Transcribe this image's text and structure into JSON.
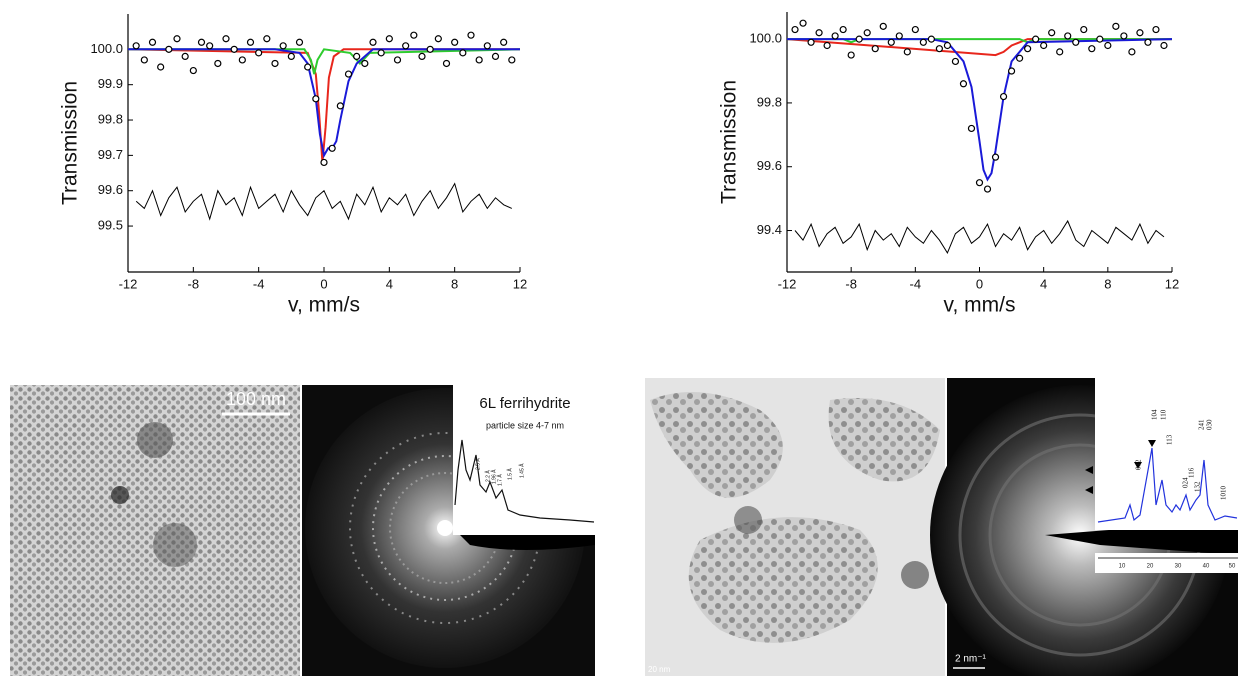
{
  "chart_data": [
    {
      "type": "scatter",
      "ylabel": "Transmission",
      "xlabel": "v, mm/s",
      "xlim": [
        -12,
        12
      ],
      "xticks": [
        -12,
        -8,
        -4,
        0,
        4,
        8,
        12
      ],
      "ylim": [
        99.37,
        100.1
      ],
      "yticks": [
        99.5,
        99.6,
        99.7,
        99.8,
        99.9,
        {
          "value": 100,
          "label": "100.0"
        }
      ],
      "series": [
        {
          "kind": "points",
          "color": "#000000",
          "x": [
            -11.5,
            -11,
            -10.5,
            -10,
            -9.5,
            -9,
            -8.5,
            -8,
            -7.5,
            -7,
            -6.5,
            -6,
            -5.5,
            -5,
            -4.5,
            -4,
            -3.5,
            -3,
            -2.5,
            -2,
            -1.5,
            -1,
            -0.5,
            0,
            0.5,
            1,
            1.5,
            2,
            2.5,
            3,
            3.5,
            4,
            4.5,
            5,
            5.5,
            6,
            6.5,
            7,
            7.5,
            8,
            8.5,
            9,
            9.5,
            10,
            10.5,
            11,
            11.5
          ],
          "values": [
            100.01,
            99.97,
            100.02,
            99.95,
            100.0,
            100.03,
            99.98,
            99.94,
            100.02,
            100.01,
            99.96,
            100.03,
            100.0,
            99.97,
            100.02,
            99.99,
            100.03,
            99.96,
            100.01,
            99.98,
            100.02,
            99.95,
            99.86,
            99.68,
            99.72,
            99.84,
            99.93,
            99.98,
            99.96,
            100.02,
            99.99,
            100.03,
            99.97,
            100.01,
            100.04,
            99.98,
            100.0,
            100.03,
            99.96,
            100.02,
            99.99,
            100.04,
            99.97,
            100.01,
            99.98,
            100.02,
            99.97
          ]
        },
        {
          "kind": "line",
          "color": "#000000",
          "x": [
            -11.5,
            -11,
            -10.5,
            -10,
            -9.5,
            -9,
            -8.5,
            -8,
            -7.5,
            -7,
            -6.5,
            -6,
            -5.5,
            -5,
            -4.5,
            -4,
            -3.5,
            -3,
            -2.5,
            -2,
            -1.5,
            -1,
            -0.5,
            0,
            0.5,
            1,
            1.5,
            2,
            2.5,
            3,
            3.5,
            4,
            4.5,
            5,
            5.5,
            6,
            6.5,
            7,
            7.5,
            8,
            8.5,
            9,
            9.5,
            10,
            10.5,
            11,
            11.5
          ],
          "values": [
            99.57,
            99.55,
            99.6,
            99.53,
            99.58,
            99.61,
            99.54,
            99.57,
            99.59,
            99.52,
            99.6,
            99.56,
            99.58,
            99.53,
            99.61,
            99.55,
            99.57,
            99.59,
            99.54,
            99.6,
            99.56,
            99.53,
            99.58,
            99.6,
            99.55,
            99.57,
            99.52,
            99.59,
            99.56,
            99.61,
            99.54,
            99.58,
            99.56,
            99.59,
            99.53,
            99.57,
            99.6,
            99.55,
            99.58,
            99.62,
            99.54,
            99.57,
            99.59,
            99.55,
            99.58,
            99.56,
            99.55
          ]
        },
        {
          "kind": "line",
          "color": "#e8261c",
          "x": [
            -12,
            -1,
            -0.5,
            -0.3,
            -0.1,
            0.1,
            0.3,
            0.6,
            1.2,
            12
          ],
          "values": [
            100,
            99.99,
            99.93,
            99.82,
            99.68,
            99.78,
            99.92,
            99.98,
            100,
            100
          ]
        },
        {
          "kind": "line",
          "color": "#2ecc2e",
          "x": [
            -12,
            -1.2,
            -0.8,
            -0.6,
            -0.4,
            0,
            1.6,
            2,
            2.2,
            2.4,
            2.8,
            12
          ],
          "values": [
            100,
            100,
            99.97,
            99.93,
            99.97,
            100,
            99.99,
            99.97,
            99.96,
            99.97,
            99.99,
            100
          ]
        },
        {
          "kind": "line",
          "color": "#1a1ad8",
          "x": [
            -12,
            -3,
            -1.5,
            -1,
            -0.5,
            -0.25,
            0,
            0.25,
            0.5,
            0.75,
            1,
            1.5,
            2,
            2.5,
            3,
            12
          ],
          "values": [
            100,
            100,
            99.99,
            99.96,
            99.86,
            99.76,
            99.7,
            99.72,
            99.72,
            99.74,
            99.8,
            99.91,
            99.96,
            99.98,
            100,
            100
          ]
        }
      ]
    },
    {
      "type": "scatter",
      "ylabel": "Transmission",
      "xlabel": "v, mm/s",
      "xlim": [
        -12,
        12
      ],
      "xticks": [
        -12,
        -8,
        -4,
        0,
        4,
        8,
        12
      ],
      "ylim": [
        99.27,
        100.085
      ],
      "yticks": [
        99.4,
        99.6,
        99.8,
        {
          "value": 100,
          "label": "100.0"
        }
      ],
      "series": [
        {
          "kind": "points",
          "color": "#000000",
          "x": [
            -11.5,
            -11,
            -10.5,
            -10,
            -9.5,
            -9,
            -8.5,
            -8,
            -7.5,
            -7,
            -6.5,
            -6,
            -5.5,
            -5,
            -4.5,
            -4,
            -3.5,
            -3,
            -2.5,
            -2,
            -1.5,
            -1,
            -0.5,
            0,
            0.5,
            1,
            1.5,
            2,
            2.5,
            3,
            3.5,
            4,
            4.5,
            5,
            5.5,
            6,
            6.5,
            7,
            7.5,
            8,
            8.5,
            9,
            9.5,
            10,
            10.5,
            11,
            11.5
          ],
          "values": [
            100.03,
            100.05,
            99.99,
            100.02,
            99.98,
            100.01,
            100.03,
            99.95,
            100.0,
            100.02,
            99.97,
            100.04,
            99.99,
            100.01,
            99.96,
            100.03,
            99.99,
            100.0,
            99.97,
            99.98,
            99.93,
            99.86,
            99.72,
            99.55,
            99.53,
            99.63,
            99.82,
            99.9,
            99.94,
            99.97,
            100.0,
            99.98,
            100.02,
            99.96,
            100.01,
            99.99,
            100.03,
            99.97,
            100.0,
            99.98,
            100.04,
            100.01,
            99.96,
            100.02,
            99.99,
            100.03,
            99.98
          ]
        },
        {
          "kind": "line",
          "color": "#000000",
          "x": [
            -11.5,
            -11,
            -10.5,
            -10,
            -9.5,
            -9,
            -8.5,
            -8,
            -7.5,
            -7,
            -6.5,
            -6,
            -5.5,
            -5,
            -4.5,
            -4,
            -3.5,
            -3,
            -2.5,
            -2,
            -1.5,
            -1,
            -0.5,
            0,
            0.5,
            1,
            1.5,
            2,
            2.5,
            3,
            3.5,
            4,
            4.5,
            5,
            5.5,
            6,
            6.5,
            7,
            7.5,
            8,
            8.5,
            9,
            9.5,
            10,
            10.5,
            11,
            11.5
          ],
          "values": [
            99.4,
            99.37,
            99.42,
            99.35,
            99.39,
            99.41,
            99.36,
            99.38,
            99.42,
            99.34,
            99.4,
            99.37,
            99.39,
            99.35,
            99.41,
            99.38,
            99.36,
            99.4,
            99.37,
            99.33,
            99.39,
            99.41,
            99.36,
            99.38,
            99.42,
            99.35,
            99.39,
            99.37,
            99.41,
            99.34,
            99.38,
            99.4,
            99.36,
            99.39,
            99.43,
            99.37,
            99.35,
            99.4,
            99.38,
            99.36,
            99.41,
            99.39,
            99.37,
            99.42,
            99.36,
            99.4,
            99.38
          ]
        },
        {
          "kind": "line",
          "color": "#e8261c",
          "x": [
            -12,
            1,
            1.5,
            2,
            2.5,
            3,
            12
          ],
          "values": [
            100,
            99.95,
            99.96,
            99.98,
            99.99,
            100,
            100
          ]
        },
        {
          "kind": "line",
          "color": "#2ecc2e",
          "x": [
            -12,
            -8.5,
            -8,
            -7.5,
            2.5,
            3,
            3.5,
            12
          ],
          "values": [
            100,
            100,
            99.99,
            100,
            100,
            99.99,
            100,
            100
          ]
        },
        {
          "kind": "line",
          "color": "#1a1ad8",
          "x": [
            -12,
            -3,
            -2,
            -1,
            -0.5,
            0,
            0.25,
            0.5,
            0.75,
            1,
            1.5,
            2,
            3,
            12
          ],
          "values": [
            100,
            100,
            99.99,
            99.93,
            99.85,
            99.68,
            99.59,
            99.56,
            99.58,
            99.65,
            99.82,
            99.93,
            99.99,
            100
          ]
        }
      ]
    }
  ],
  "images": [
    {
      "scale_bar": "100 nm",
      "inset_title": "6L ferrihydrite",
      "inset_subtitle": "particle size 4-7 nm",
      "peak_labels": [
        "2.5 Å",
        "2.2 Å",
        "1.96 Å",
        "1.7 Å",
        "1.5 Å",
        "1.45 Å"
      ]
    },
    {
      "scale_bar": "20 nm",
      "diffraction_scale": "2 nm⁻¹",
      "peak_labels": [
        "012",
        "104",
        "110",
        "113",
        "024",
        "116",
        "132",
        "241",
        "030",
        "1010"
      ],
      "inset_axis_ticks": [
        "10",
        "20",
        "30",
        "40",
        "50"
      ]
    }
  ]
}
